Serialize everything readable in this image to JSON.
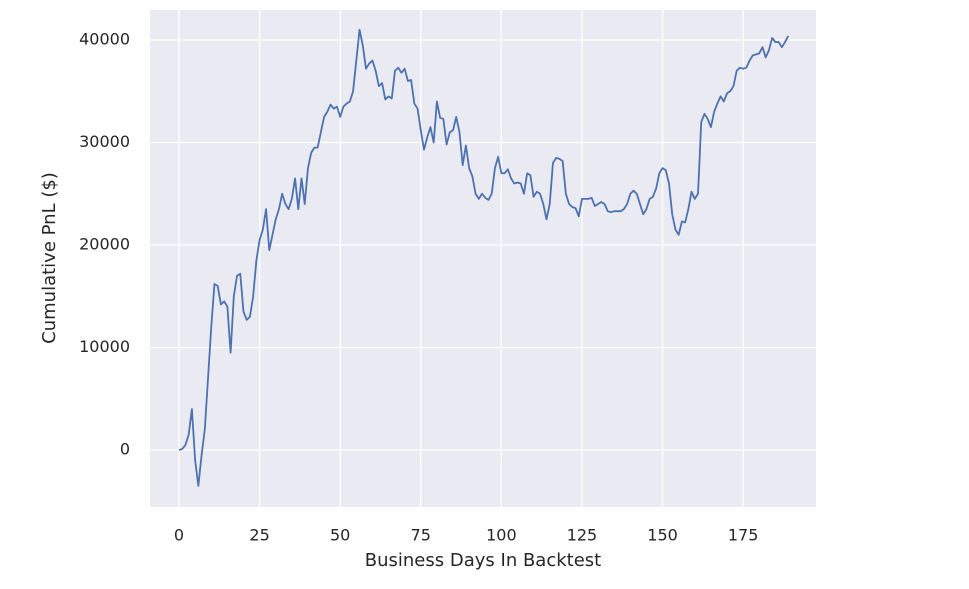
{
  "chart_data": {
    "type": "line",
    "xlabel": "Business Days In Backtest",
    "ylabel": "Cumulative PnL ($)",
    "xlim": [
      -9,
      197.6
    ],
    "ylim": [
      -5561,
      42927
    ],
    "xticks": [
      0,
      25,
      50,
      75,
      100,
      125,
      150,
      175
    ],
    "yticks": [
      0,
      10000,
      20000,
      30000,
      40000
    ],
    "grid": true,
    "background": "#eaeaf2",
    "x": [
      0,
      1,
      2,
      3,
      4,
      5,
      6,
      7,
      8,
      9,
      10,
      11,
      12,
      13,
      14,
      15,
      16,
      17,
      18,
      19,
      20,
      21,
      22,
      23,
      24,
      25,
      26,
      27,
      28,
      29,
      30,
      31,
      32,
      33,
      34,
      35,
      36,
      37,
      38,
      39,
      40,
      41,
      42,
      43,
      44,
      45,
      46,
      47,
      48,
      49,
      50,
      51,
      52,
      53,
      54,
      55,
      56,
      57,
      58,
      59,
      60,
      61,
      62,
      63,
      64,
      65,
      66,
      67,
      68,
      69,
      70,
      71,
      72,
      73,
      74,
      75,
      76,
      77,
      78,
      79,
      80,
      81,
      82,
      83,
      84,
      85,
      86,
      87,
      88,
      89,
      90,
      91,
      92,
      93,
      94,
      95,
      96,
      97,
      98,
      99,
      100,
      101,
      102,
      103,
      104,
      105,
      106,
      107,
      108,
      109,
      110,
      111,
      112,
      113,
      114,
      115,
      116,
      117,
      118,
      119,
      120,
      121,
      122,
      123,
      124,
      125,
      126,
      127,
      128,
      129,
      130,
      131,
      132,
      133,
      134,
      135,
      136,
      137,
      138,
      139,
      140,
      141,
      142,
      143,
      144,
      145,
      146,
      147,
      148,
      149,
      150,
      151,
      152,
      153,
      154,
      155,
      156,
      157,
      158,
      159,
      160,
      161,
      162,
      163,
      164,
      165,
      166,
      167,
      168,
      169,
      170,
      171,
      172,
      173,
      174,
      175,
      176,
      177,
      178,
      179,
      180,
      181,
      182,
      183,
      184,
      185,
      186,
      187,
      188,
      189
    ],
    "series": [
      {
        "color": "#4c72b0",
        "values": [
          0,
          100,
          500,
          1500,
          4000,
          -1000,
          -3500,
          -500,
          2000,
          7000,
          12000,
          16200,
          16000,
          14200,
          14500,
          14000,
          9500,
          15000,
          17000,
          17200,
          13500,
          12700,
          13000,
          15000,
          18500,
          20500,
          21500,
          23500,
          19500,
          21000,
          22500,
          23500,
          25000,
          24000,
          23500,
          24500,
          26500,
          23500,
          26500,
          24000,
          27500,
          29000,
          29500,
          29500,
          31000,
          32500,
          33000,
          33700,
          33300,
          33500,
          32500,
          33500,
          33800,
          34000,
          35000,
          38000,
          41000,
          39500,
          37200,
          37700,
          38000,
          37000,
          35500,
          35800,
          34200,
          34500,
          34300,
          37000,
          37300,
          36800,
          37200,
          36000,
          36100,
          33800,
          33300,
          31200,
          29300,
          30500,
          31500,
          30000,
          34000,
          32400,
          32300,
          29800,
          31000,
          31200,
          32500,
          31000,
          27800,
          29700,
          27500,
          26700,
          25000,
          24500,
          25000,
          24600,
          24400,
          25000,
          27500,
          28600,
          27000,
          27000,
          27400,
          26500,
          26000,
          26100,
          26000,
          25000,
          27000,
          26800,
          24700,
          25200,
          25000,
          24000,
          22500,
          24000,
          28000,
          28500,
          28400,
          28200,
          25000,
          24000,
          23700,
          23600,
          22800,
          24500,
          24500,
          24500,
          24600,
          23800,
          24000,
          24200,
          24000,
          23300,
          23200,
          23300,
          23300,
          23300,
          23500,
          24000,
          25000,
          25300,
          25000,
          24000,
          23000,
          23500,
          24500,
          24700,
          25500,
          27000,
          27500,
          27300,
          26000,
          23000,
          21500,
          21000,
          22300,
          22200,
          23500,
          25200,
          24500,
          25000,
          32000,
          32800,
          32300,
          31500,
          33000,
          33800,
          34500,
          34000,
          34800,
          35000,
          35500,
          37000,
          37300,
          37200,
          37300,
          38000,
          38500,
          38600,
          38700,
          39300,
          38300,
          39000,
          40200,
          39800,
          39800,
          39300,
          39800,
          40400
        ]
      }
    ]
  }
}
